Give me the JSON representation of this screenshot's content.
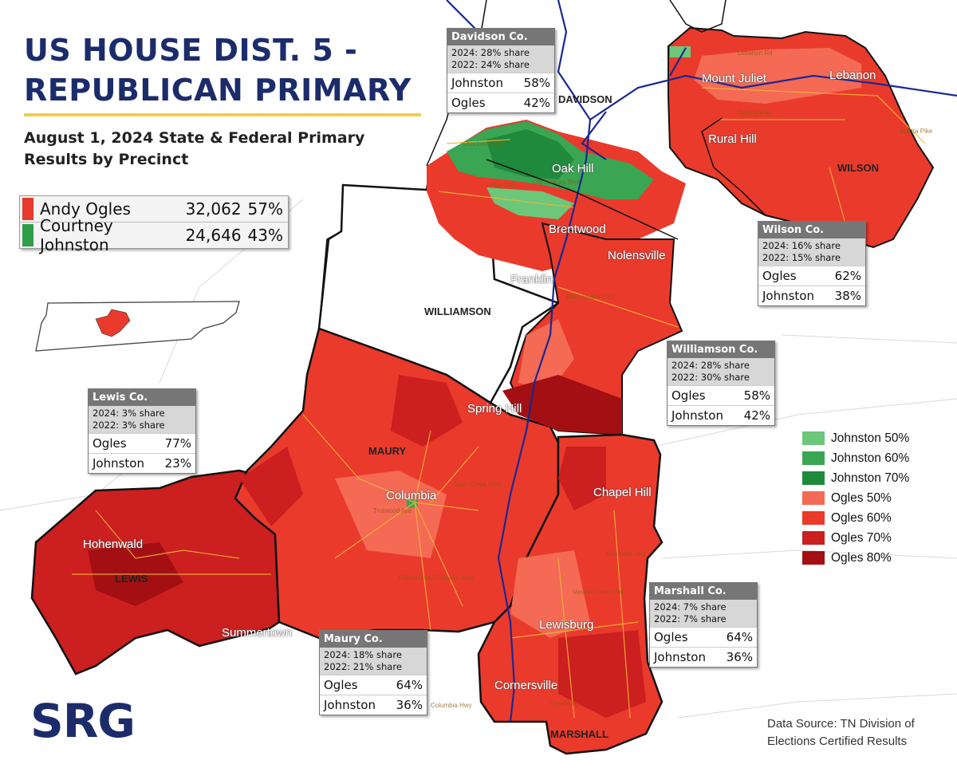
{
  "title": {
    "line1": "US HOUSE DIST. 5 -",
    "line2": "REPUBLICAN PRIMARY"
  },
  "subtitle": {
    "line1": "August 1, 2024 State & Federal Primary",
    "line2": "Results by Precinct"
  },
  "totals": [
    {
      "name": "Andy Ogles",
      "votes": "32,062",
      "pct": "57%",
      "color": "#e53a2c"
    },
    {
      "name": "Courtney Johnston",
      "votes": "24,646",
      "pct": "43%",
      "color": "#2e9e47"
    }
  ],
  "counties": {
    "davidson": {
      "name": "Davidson Co.",
      "share2024": "2024: 28% share",
      "share2022": "2022: 24% share",
      "results": [
        {
          "cand": "Johnston",
          "pct": "58%"
        },
        {
          "cand": "Ogles",
          "pct": "42%"
        }
      ]
    },
    "wilson": {
      "name": "Wilson Co.",
      "share2024": "2024: 16% share",
      "share2022": "2022: 15% share",
      "results": [
        {
          "cand": "Ogles",
          "pct": "62%"
        },
        {
          "cand": "Johnston",
          "pct": "38%"
        }
      ]
    },
    "williamson": {
      "name": "Williamson Co.",
      "share2024": "2024: 28% share",
      "share2022": "2022: 30% share",
      "results": [
        {
          "cand": "Ogles",
          "pct": "58%"
        },
        {
          "cand": "Johnston",
          "pct": "42%"
        }
      ]
    },
    "lewis": {
      "name": "Lewis Co.",
      "share2024": "2024: 3% share",
      "share2022": "2022: 3% share",
      "results": [
        {
          "cand": "Ogles",
          "pct": "77%"
        },
        {
          "cand": "Johnston",
          "pct": "23%"
        }
      ]
    },
    "maury": {
      "name": "Maury Co.",
      "share2024": "2024: 18% share",
      "share2022": "2022: 21% share",
      "results": [
        {
          "cand": "Ogles",
          "pct": "64%"
        },
        {
          "cand": "Johnston",
          "pct": "36%"
        }
      ]
    },
    "marshall": {
      "name": "Marshall Co.",
      "share2024": "2024: 7% share",
      "share2022": "2022: 7% share",
      "results": [
        {
          "cand": "Ogles",
          "pct": "64%"
        },
        {
          "cand": "Johnston",
          "pct": "36%"
        }
      ]
    }
  },
  "legend": [
    {
      "label": "Johnston 50%",
      "color": "#6cc77a"
    },
    {
      "label": "Johnston 60%",
      "color": "#3aa553"
    },
    {
      "label": "Johnston 70%",
      "color": "#1f8a3b"
    },
    {
      "label": "Ogles 50%",
      "color": "#f46a55"
    },
    {
      "label": "Ogles 60%",
      "color": "#ea3a2c"
    },
    {
      "label": "Ogles 70%",
      "color": "#cc1f1f"
    },
    {
      "label": "Ogles 80%",
      "color": "#a30f12"
    }
  ],
  "map_labels": {
    "towns": {
      "mount_juliet": "Mount Juliet",
      "lebanon": "Lebanon",
      "rural_hill": "Rural Hill",
      "oak_hill": "Oak Hill",
      "brentwood": "Brentwood",
      "nolensville": "Nolensville",
      "franklin": "Franklin",
      "spring_hill": "Spring Hill",
      "columbia": "Columbia",
      "chapel_hill": "Chapel Hill",
      "hohenwald": "Hohenwald",
      "lewisburg": "Lewisburg",
      "cornersville": "Cornersville",
      "summertown": "Summertown"
    },
    "counties": {
      "davidson": "DAVIDSON",
      "wilson": "WILSON",
      "williamson": "WILLIAMSON",
      "maury": "MAURY",
      "lewis": "LEWIS",
      "marshall": "MARSHALL"
    },
    "roads": {
      "lebanon_rd": "Lebanon Rd",
      "central_pike": "Central Pike",
      "sparta_pike": "Sparta Pike",
      "charlotte_pike": "Charlotte Pike",
      "hwy100": "Hwy 100",
      "old_hickory": "Old Hickory Blvd",
      "murfreesboro_rd": "Murfreesboro Rd",
      "bear_creek": "Bear Creek Pike",
      "trotwood": "Trotwood Ave",
      "pulaski_hwy": "Pulaski Hwy",
      "culleoka_hwy": "Culleoka Hwy",
      "nashville_hwy": "Nashville Hwy",
      "verona": "Verona Caney Rd",
      "ostella": "Ostella Rd",
      "columbia_hwy": "Columbia Hwy"
    }
  },
  "logo": "SRG",
  "source": {
    "line1": "Data Source: TN Division of",
    "line2": "Elections Certified Results"
  }
}
